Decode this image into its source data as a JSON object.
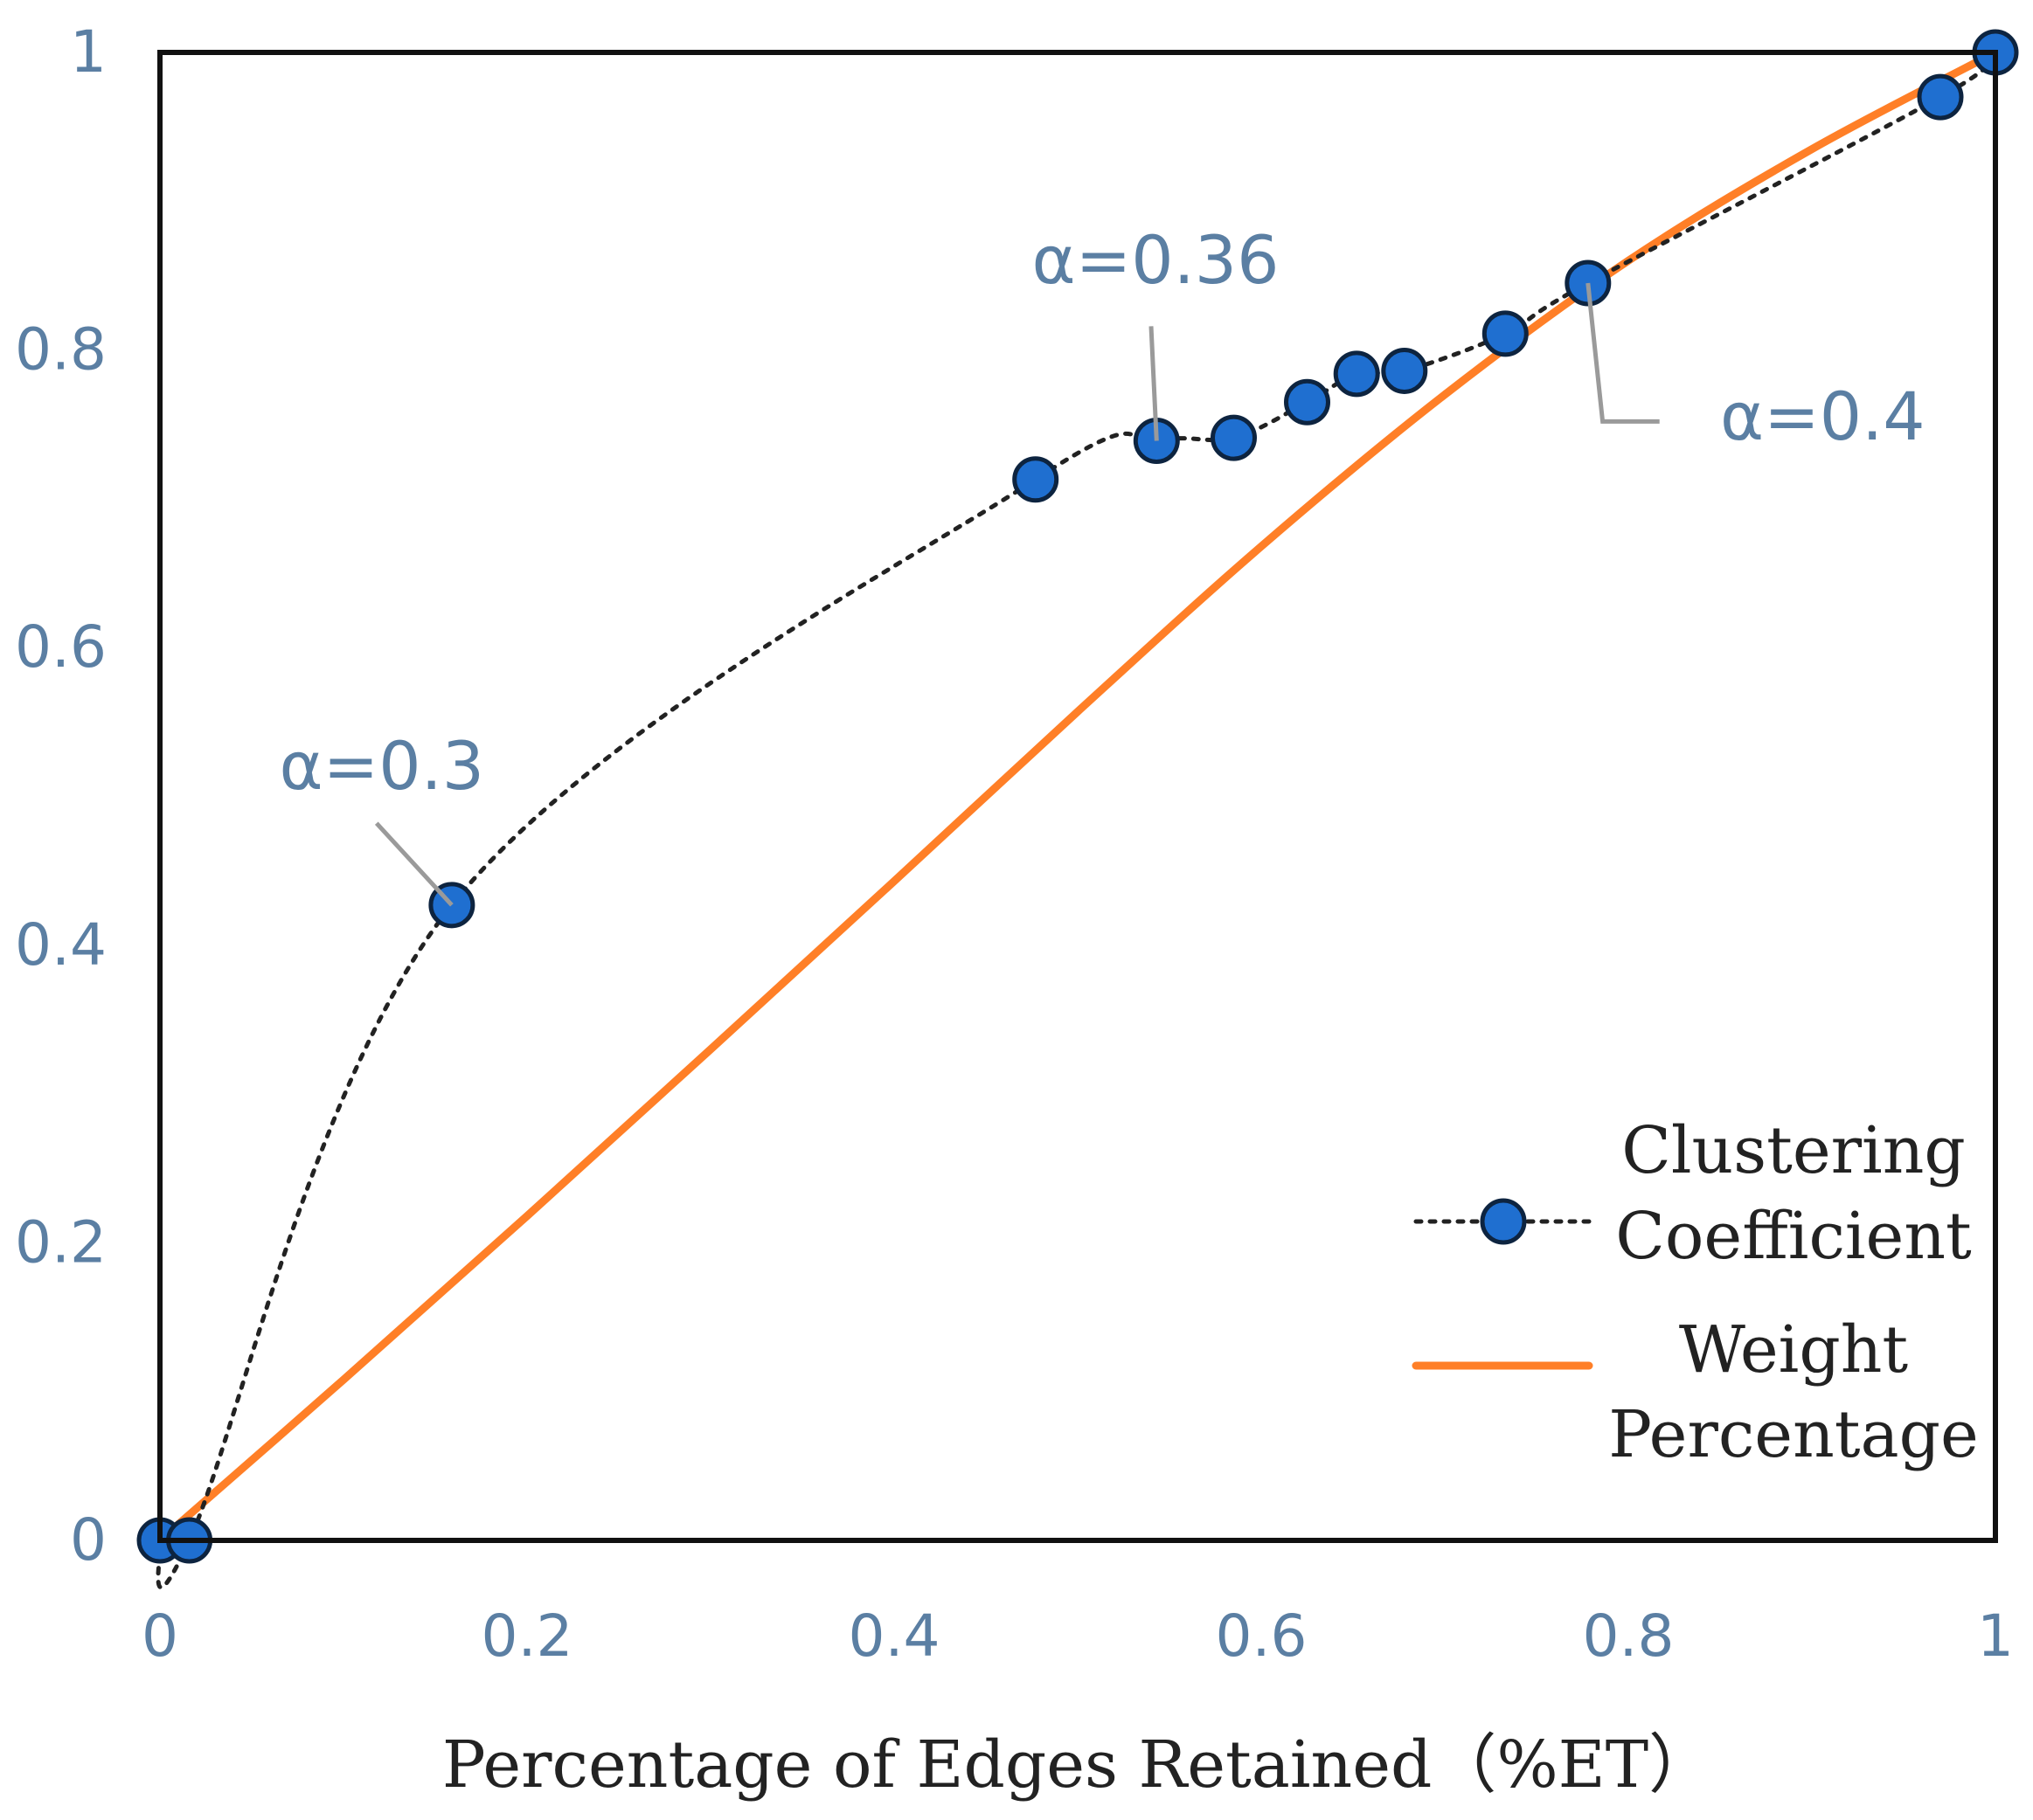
{
  "chart_data": {
    "type": "line",
    "title": "",
    "xlabel": "Percentage of Edges Retained（%ET）",
    "ylabel": "",
    "xlim": [
      0,
      1
    ],
    "ylim": [
      0,
      1
    ],
    "x_ticks": [
      "0",
      "0.2",
      "0.4",
      "0.6",
      "0.8",
      "1"
    ],
    "y_ticks": [
      "0",
      "0.2",
      "0.4",
      "0.6",
      "0.8",
      "1"
    ],
    "grid": false,
    "legend_position": "bottom-right",
    "series": [
      {
        "name": "Clustering Coefficient",
        "style": "dotted-markers",
        "color": "#1f6fd0",
        "line_color": "#222222",
        "x": [
          0.0,
          0.016,
          0.159,
          0.477,
          0.543,
          0.585,
          0.625,
          0.652,
          0.678,
          0.733,
          0.778,
          0.97,
          1.0
        ],
        "y": [
          0.0,
          0.0,
          0.427,
          0.713,
          0.739,
          0.741,
          0.765,
          0.784,
          0.786,
          0.811,
          0.845,
          0.97,
          1.0
        ]
      },
      {
        "name": "Weight Percentage",
        "style": "solid",
        "color": "#ff7f27",
        "x": [
          0.0,
          0.1,
          0.2,
          0.3,
          0.4,
          0.5,
          0.6,
          0.7,
          0.8,
          0.9,
          1.0
        ],
        "y": [
          0.0,
          0.108,
          0.218,
          0.33,
          0.443,
          0.557,
          0.668,
          0.77,
          0.86,
          0.935,
          1.0
        ]
      }
    ],
    "legend": {
      "clustering": [
        "Clustering",
        "Coefficient"
      ],
      "weight": [
        "Weight",
        "Percentage"
      ]
    },
    "annotations": [
      {
        "text": "α=0.3",
        "x": 0.159,
        "y": 0.427
      },
      {
        "text": "α=0.36",
        "x": 0.543,
        "y": 0.739
      },
      {
        "text": "α=0.4",
        "x": 0.778,
        "y": 0.845
      }
    ]
  }
}
